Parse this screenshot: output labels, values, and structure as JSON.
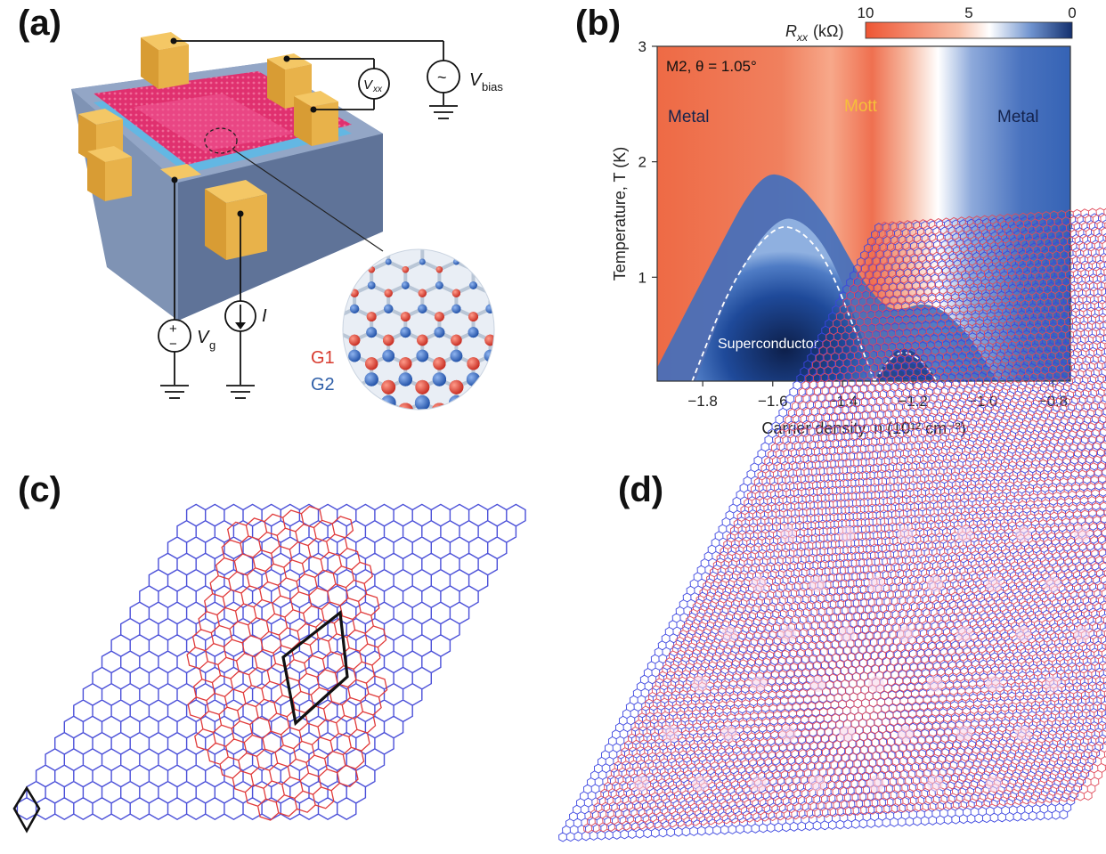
{
  "panels": {
    "a": {
      "label": "(a)",
      "circuit": {
        "vxx": "V",
        "vxx_sub": "xx",
        "vbias": "V",
        "vbias_sub": "bias",
        "ac_symbol": "~",
        "vg": "V",
        "vg_sub": "g",
        "plus": "+",
        "minus": "−",
        "current": "I"
      },
      "layers": {
        "g1": "G1",
        "g2": "G2",
        "g1_color": "#d83a2e",
        "g2_color": "#2f5fa8"
      }
    },
    "b": {
      "label": "(b)",
      "sample": "M2, θ = 1.05°",
      "regions": {
        "metal_left": "Metal",
        "mott": "Mott",
        "metal_right": "Metal",
        "superconductor": "Superconductor"
      },
      "colorbar": {
        "title": "R",
        "title_sub": "xx",
        "title_unit": "(kΩ)",
        "ticks": [
          "10",
          "5",
          "0"
        ],
        "high_color": "#ee5533",
        "mid_color": "#ffffff",
        "low_color": "#14306e"
      }
    },
    "c": {
      "label": "(c)"
    },
    "d": {
      "label": "(d)"
    }
  },
  "chart_data": {
    "type": "heatmap",
    "xlabel": "Carrier density, n (10¹² cm⁻²)",
    "ylabel": "Temperature, T (K)",
    "x_ticks": [
      "−1.8",
      "−1.6",
      "−1.4",
      "−1.2",
      "−1.0",
      "−0.8"
    ],
    "x_tick_values": [
      -1.8,
      -1.6,
      -1.4,
      -1.2,
      -1.0,
      -0.8
    ],
    "y_ticks": [
      "1",
      "2",
      "3"
    ],
    "y_tick_values": [
      1,
      2,
      3
    ],
    "xlim": [
      -1.93,
      -0.75
    ],
    "ylim": [
      0.1,
      3.0
    ],
    "colorbar_range_kohm": [
      0,
      10
    ],
    "superconducting_dome_main": {
      "n": [
        -1.83,
        -1.72,
        -1.6,
        -1.52,
        -1.44,
        -1.36,
        -1.31
      ],
      "T": [
        0.1,
        0.95,
        1.45,
        1.42,
        1.12,
        0.5,
        0.1
      ]
    },
    "superconducting_dome_small": {
      "n": [
        -1.31,
        -1.25,
        -1.19,
        -1.13
      ],
      "T": [
        0.1,
        0.36,
        0.33,
        0.1
      ]
    }
  }
}
